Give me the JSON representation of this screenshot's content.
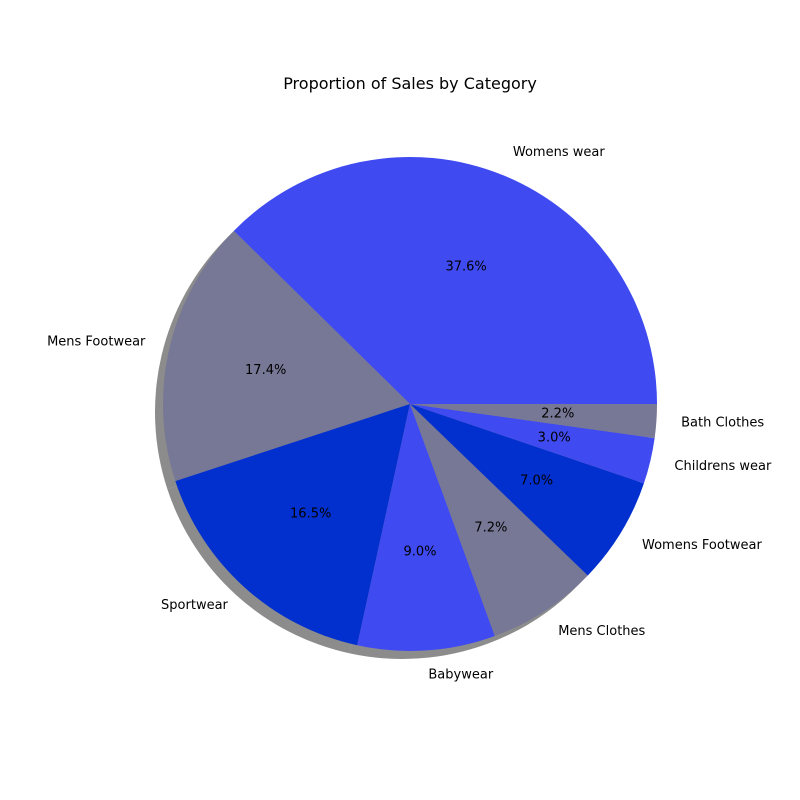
{
  "chart_data": {
    "type": "pie",
    "title": "Proportion of Sales by Category",
    "start_angle_deg": 0,
    "direction": "counterclockwise",
    "shadow": true,
    "slices": [
      {
        "label": "Womens wear",
        "value": 37.6,
        "pct_label": "37.6%",
        "color": "#3f4af0"
      },
      {
        "label": "Mens Footwear",
        "value": 17.4,
        "pct_label": "17.4%",
        "color": "#777796"
      },
      {
        "label": "Sportwear",
        "value": 16.5,
        "pct_label": "16.5%",
        "color": "#0130cf"
      },
      {
        "label": "Babywear",
        "value": 9.0,
        "pct_label": "9.0%",
        "color": "#3f4af0"
      },
      {
        "label": "Mens Clothes",
        "value": 7.2,
        "pct_label": "7.2%",
        "color": "#777796"
      },
      {
        "label": "Womens Footwear",
        "value": 7.0,
        "pct_label": "7.0%",
        "color": "#0130cf"
      },
      {
        "label": "Childrens wear",
        "value": 3.0,
        "pct_label": "3.0%",
        "color": "#3f4af0"
      },
      {
        "label": "Bath Clothes",
        "value": 2.2,
        "pct_label": "2.2%",
        "color": "#777796"
      }
    ]
  }
}
